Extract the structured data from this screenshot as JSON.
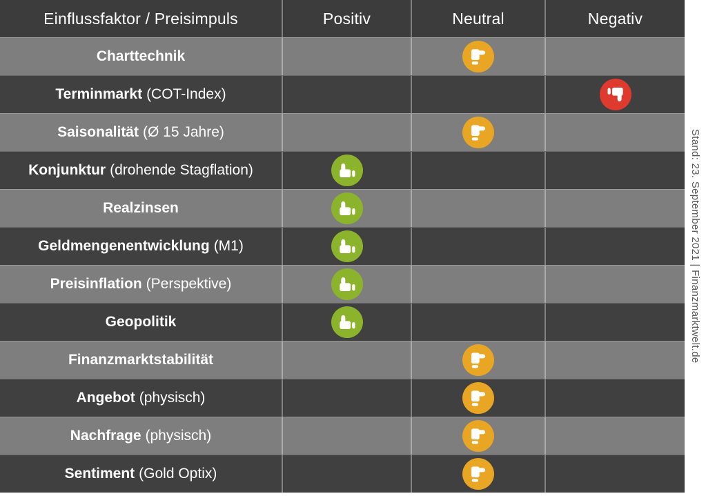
{
  "chart_data": {
    "type": "table",
    "header": {
      "factor": "Einflussfaktor / Preisimpuls",
      "positiv": "Positiv",
      "neutral": "Neutral",
      "negativ": "Negativ"
    },
    "rows": [
      {
        "factor": "Charttechnik",
        "detail": "",
        "rating": "neutral"
      },
      {
        "factor": "Terminmarkt",
        "detail": "(COT-Index)",
        "rating": "negativ"
      },
      {
        "factor": "Saisonalität",
        "detail": "(Ø 15 Jahre)",
        "rating": "neutral"
      },
      {
        "factor": "Konjunktur",
        "detail": "(drohende Stagflation)",
        "rating": "positiv"
      },
      {
        "factor": "Realzinsen",
        "detail": "",
        "rating": "positiv"
      },
      {
        "factor": "Geldmengenentwicklung",
        "detail": "(M1)",
        "rating": "positiv"
      },
      {
        "factor": "Preisinflation",
        "detail": "(Perspektive)",
        "rating": "positiv"
      },
      {
        "factor": "Geopolitik",
        "detail": "",
        "rating": "positiv"
      },
      {
        "factor": "Finanzmarktstabilität",
        "detail": "",
        "rating": "neutral"
      },
      {
        "factor": "Angebot",
        "detail": "(physisch)",
        "rating": "neutral"
      },
      {
        "factor": "Nachfrage",
        "detail": "(physisch)",
        "rating": "neutral"
      },
      {
        "factor": "Sentiment",
        "detail": "(Gold Optix)",
        "rating": "neutral"
      }
    ]
  },
  "side_note": "Stand: 23. September 2021 | Finanzmarktwelt.de",
  "icons": {
    "positiv": "thumb-up-icon",
    "neutral": "thumb-neutral-icon",
    "negativ": "thumb-down-icon"
  },
  "colors": {
    "header_bg": "#3c3c3c",
    "row_dark": "#404040",
    "row_gray": "#7e7e7e",
    "positive": "#8CB32C",
    "neutral": "#E8A624",
    "negative": "#DE3B2E",
    "note_text": "#595959"
  }
}
